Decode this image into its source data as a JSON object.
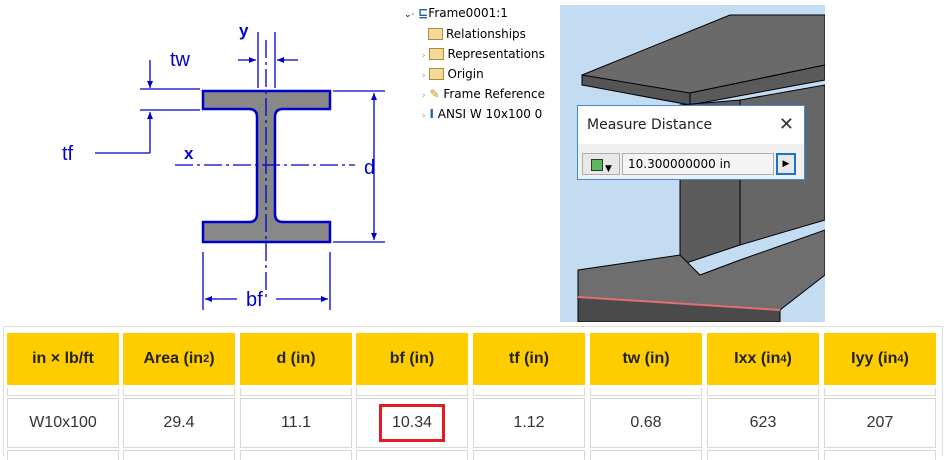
{
  "diagram": {
    "labels": {
      "y": "y",
      "x": "x",
      "tw": "tw",
      "tf": "tf",
      "d": "d",
      "bf": "bf"
    },
    "line_color": "#0000cc",
    "fill_color": "#888888"
  },
  "tree": {
    "root": "Frame0001:1",
    "items": [
      {
        "label": "Relationships",
        "icon": "folder-icon"
      },
      {
        "label": "Representations",
        "icon": "representations-icon"
      },
      {
        "label": "Origin",
        "icon": "folder-icon"
      },
      {
        "label": "Frame Reference",
        "icon": "frame-reference-icon"
      },
      {
        "label": "ANSI W 10x100 0",
        "icon": "i-beam-icon"
      }
    ]
  },
  "dialog": {
    "title": "Measure Distance",
    "value": "10.300000000 in"
  },
  "table": {
    "headers": [
      "in × lb/ft",
      "Area (in",
      "d (in)",
      "bf (in)",
      "tf (in)",
      "tw (in)",
      "Ixx (in",
      "Iyy (in"
    ],
    "header_sup": [
      "",
      "2",
      "",
      "",
      "",
      "",
      "4",
      "4"
    ],
    "header_tail": [
      "",
      ")",
      "",
      "",
      "",
      "",
      ")",
      ")"
    ],
    "rows": [
      [
        "W10x100",
        "29.4",
        "11.1",
        "10.34",
        "1.12",
        "0.68",
        "623",
        "207"
      ]
    ],
    "highlight": {
      "row": 0,
      "col": 3,
      "color": "#e01b24"
    },
    "header_color": "#ffcc00"
  }
}
